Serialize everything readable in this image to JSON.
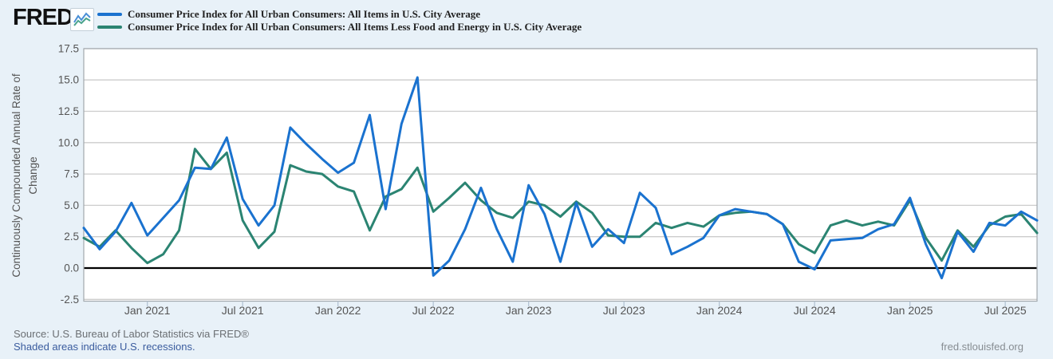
{
  "brand": {
    "logo_text": "FRED",
    "registered_mark": "®",
    "chart_icon": "line-chart-icon"
  },
  "legend": [
    {
      "label": "Consumer Price Index for All Urban Consumers: All Items in U.S. City Average",
      "color": "#1a72cf"
    },
    {
      "label": "Consumer Price Index for All Urban Consumers: All Items Less Food and Energy in U.S. City Average",
      "color": "#2b8472"
    }
  ],
  "y_axis": {
    "title_line1": "Continuously Compounded Annual Rate of",
    "title_line2": "Change",
    "ticks": [
      {
        "v": 17.5,
        "label": "17.5"
      },
      {
        "v": 15.0,
        "label": "15.0"
      },
      {
        "v": 12.5,
        "label": "12.5"
      },
      {
        "v": 10.0,
        "label": "10.0"
      },
      {
        "v": 7.5,
        "label": "7.5"
      },
      {
        "v": 5.0,
        "label": "5.0"
      },
      {
        "v": 2.5,
        "label": "2.5"
      },
      {
        "v": 0.0,
        "label": "0.0"
      },
      {
        "v": -2.5,
        "label": "-2.5"
      }
    ]
  },
  "x_axis": {
    "ticks": [
      {
        "label": "Jan 2021",
        "month_index": 4
      },
      {
        "label": "Jul 2021",
        "month_index": 10
      },
      {
        "label": "Jan 2022",
        "month_index": 16
      },
      {
        "label": "Jul 2022",
        "month_index": 22
      },
      {
        "label": "Jan 2023",
        "month_index": 28
      },
      {
        "label": "Jul 2023",
        "month_index": 34
      },
      {
        "label": "Jan 2024",
        "month_index": 40
      },
      {
        "label": "Jul 2024",
        "month_index": 46
      },
      {
        "label": "Jan 2025",
        "month_index": 52
      },
      {
        "label": "Jul 2025",
        "month_index": 58
      }
    ]
  },
  "footer": {
    "source": "Source: U.S. Bureau of Labor Statistics via FRED®",
    "recessions_note": "Shaded areas indicate U.S. recessions.",
    "site": "fred.stlouisfed.org"
  },
  "chart_data": {
    "type": "line",
    "title": "",
    "ylabel": "Continuously Compounded Annual Rate of Change",
    "xlabel": "",
    "ylim": [
      -2.5,
      17.5
    ],
    "grid": "horizontal",
    "zero_line": true,
    "frequency": "monthly",
    "x_start": "2020-09",
    "x_end": "2025-09",
    "x_tick_labels": [
      "Jan 2021",
      "Jul 2021",
      "Jan 2022",
      "Jul 2022",
      "Jan 2023",
      "Jul 2023",
      "Jan 2024",
      "Jul 2024",
      "Jan 2025",
      "Jul 2025"
    ],
    "series": [
      {
        "name": "Consumer Price Index for All Urban Consumers: All Items in U.S. City Average",
        "color": "#1a72cf",
        "values": [
          3.2,
          1.5,
          2.9,
          5.2,
          2.6,
          4.0,
          5.4,
          8.0,
          7.9,
          10.4,
          5.5,
          3.4,
          5.0,
          11.2,
          9.9,
          8.7,
          7.6,
          8.4,
          12.2,
          4.7,
          11.5,
          15.2,
          -0.6,
          0.6,
          3.1,
          6.4,
          3.1,
          0.5,
          6.6,
          4.3,
          0.5,
          5.2,
          1.7,
          3.1,
          2.0,
          6.0,
          4.8,
          1.1,
          1.7,
          2.4,
          4.2,
          4.7,
          4.5,
          4.3,
          3.5,
          0.5,
          -0.1,
          2.2,
          2.3,
          2.4,
          3.1,
          3.5,
          5.6,
          1.9,
          -0.8,
          2.9,
          1.3,
          3.6,
          3.4,
          4.5,
          3.8
        ]
      },
      {
        "name": "Consumer Price Index for All Urban Consumers: All Items Less Food and Energy in U.S. City Average",
        "color": "#2b8472",
        "values": [
          2.4,
          1.7,
          3.0,
          1.6,
          0.4,
          1.1,
          3.0,
          9.5,
          7.9,
          9.2,
          3.8,
          1.6,
          2.9,
          8.2,
          7.7,
          7.5,
          6.5,
          6.1,
          3.0,
          5.7,
          6.3,
          8.0,
          4.5,
          5.6,
          6.8,
          5.4,
          4.4,
          4.0,
          5.3,
          5.0,
          4.1,
          5.3,
          4.4,
          2.6,
          2.5,
          2.5,
          3.6,
          3.2,
          3.6,
          3.3,
          4.2,
          4.4,
          4.5,
          4.3,
          3.5,
          1.9,
          1.2,
          3.4,
          3.8,
          3.4,
          3.7,
          3.4,
          5.4,
          2.4,
          0.6,
          3.0,
          1.7,
          3.4,
          4.1,
          4.3,
          2.8
        ]
      }
    ]
  }
}
